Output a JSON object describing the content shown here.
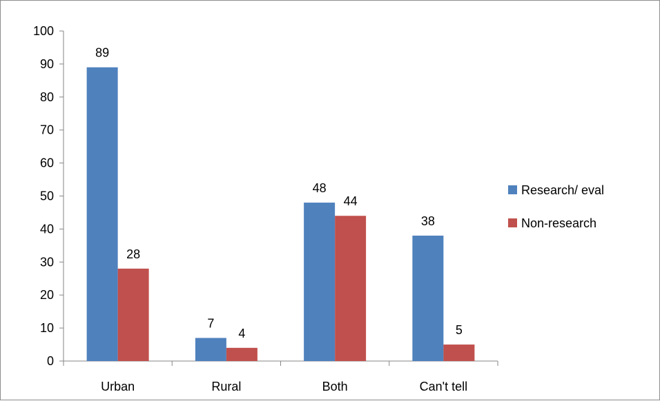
{
  "chart_data": {
    "type": "bar",
    "categories": [
      "Urban",
      "Rural",
      "Both",
      "Can't tell"
    ],
    "series": [
      {
        "name": "Research/ eval",
        "values": [
          89,
          7,
          48,
          38
        ],
        "color": "#4f81bd"
      },
      {
        "name": "Non-research",
        "values": [
          28,
          4,
          44,
          5
        ],
        "color": "#c0504d"
      }
    ],
    "title": "",
    "xlabel": "",
    "ylabel": "",
    "ylim": [
      0,
      100
    ],
    "yticks": [
      0,
      10,
      20,
      30,
      40,
      50,
      60,
      70,
      80,
      90,
      100
    ],
    "grid": false,
    "legend_position": "right",
    "axis_color": "#868686"
  }
}
